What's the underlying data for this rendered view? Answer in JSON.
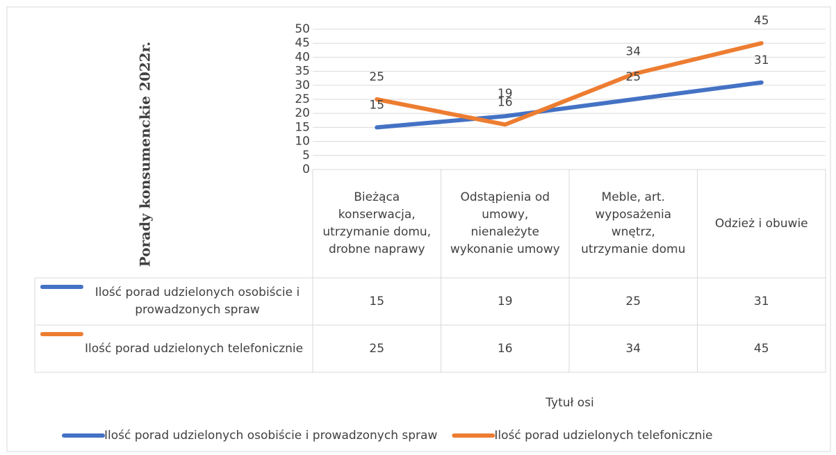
{
  "chart_data": {
    "type": "line",
    "y_axis_label": "Porady konsumenckie 2022r.",
    "x_axis_label": "Tytuł osi",
    "categories": [
      "Bieżąca konserwacja, utrzymanie domu, drobne naprawy",
      "Odstąpienia od umowy, nienależyte wykonanie umowy",
      "Meble, art. wyposażenia wnętrz, utrzymanie domu",
      "Odzież i obuwie"
    ],
    "series": [
      {
        "name": "Ilość porad udzielonych osobiście i prowadzonych spraw",
        "color": "#4472c4",
        "values": [
          15,
          19,
          25,
          31
        ]
      },
      {
        "name": "Ilość porad udzielonych telefonicznie",
        "color": "#ed7d31",
        "values": [
          25,
          16,
          34,
          45
        ]
      }
    ],
    "ylim": [
      0,
      50
    ],
    "yticks": [
      0,
      5,
      10,
      15,
      20,
      25,
      30,
      35,
      40,
      45,
      50
    ],
    "grid": true,
    "data_labels": true,
    "data_table": true,
    "legend": "bottom"
  }
}
